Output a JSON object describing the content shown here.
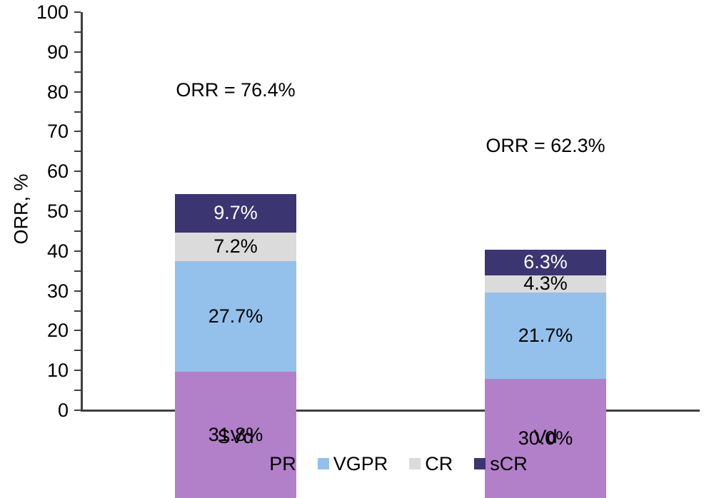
{
  "chart_data": {
    "type": "bar",
    "subtype": "stacked-column",
    "title": "",
    "categories": [
      "SVd",
      "Vd"
    ],
    "series": [
      {
        "name": "PR",
        "color": "#b180c8",
        "label_color": "#000000",
        "values": [
          31.8,
          30.0
        ],
        "labels": [
          "31.8%",
          "30.0%"
        ]
      },
      {
        "name": "VGPR",
        "color": "#93c1eb",
        "label_color": "#000000",
        "values": [
          27.7,
          21.7
        ],
        "labels": [
          "27.7%",
          "21.7%"
        ]
      },
      {
        "name": "CR",
        "color": "#dbdbdb",
        "label_color": "#000000",
        "values": [
          7.2,
          4.3
        ],
        "labels": [
          "7.2%",
          "4.3%"
        ]
      },
      {
        "name": "sCR",
        "color": "#3b3572",
        "label_color": "#ffffff",
        "values": [
          9.7,
          6.3
        ],
        "labels": [
          "9.7%",
          "6.3%"
        ]
      }
    ],
    "totals": [
      76.4,
      62.3
    ],
    "annotations": [
      "ORR = 76.4%",
      "ORR = 62.3%"
    ],
    "y_axis": {
      "label": "ORR, %",
      "min": 0,
      "max": 100,
      "major_step": 10,
      "minor_step": 5,
      "major_tick_labels": [
        "0",
        "10",
        "20",
        "30",
        "40",
        "50",
        "60",
        "70",
        "80",
        "90",
        "100"
      ]
    },
    "legend": {
      "position": "bottom",
      "entries": [
        "PR",
        "VGPR",
        "CR",
        "sCR"
      ]
    },
    "grid": false,
    "axis_color": "#3f3f3f",
    "text_color": "#000000"
  }
}
